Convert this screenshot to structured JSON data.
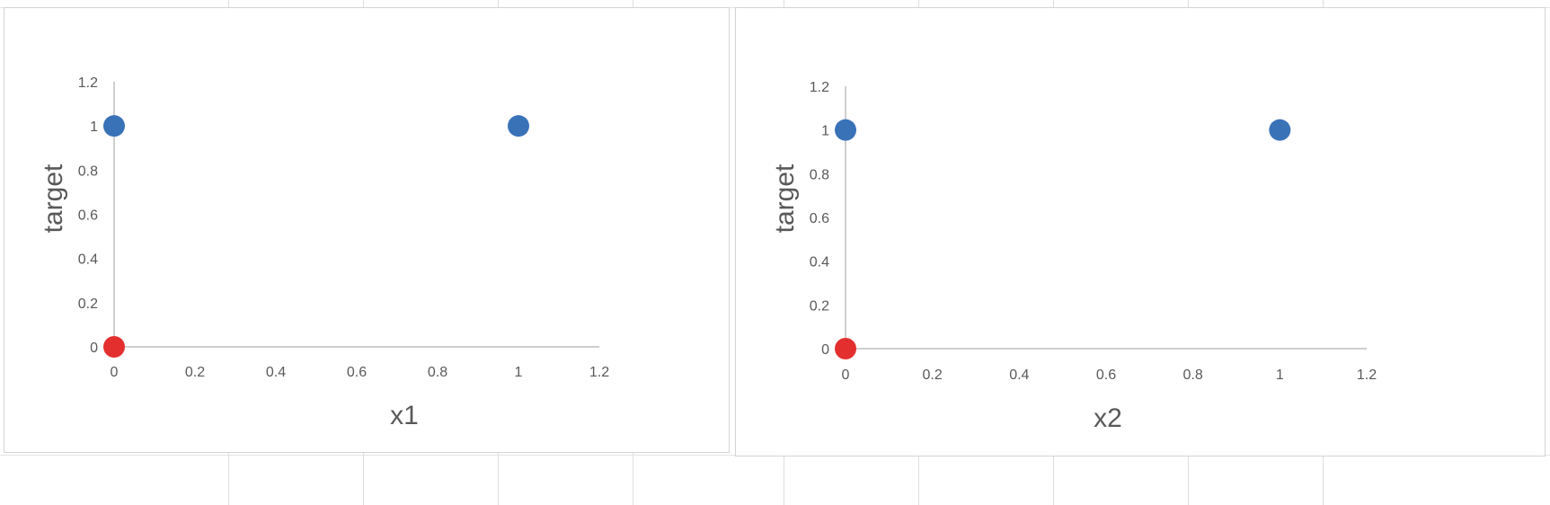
{
  "sheet": {
    "gridline_color": "#dedede"
  },
  "chart_data": [
    {
      "type": "scatter",
      "title": "",
      "xlabel": "x1",
      "ylabel": "target",
      "xlim": [
        0,
        1.2
      ],
      "ylim": [
        0,
        1.2
      ],
      "xticks": [
        "0",
        "0.2",
        "0.4",
        "0.6",
        "0.8",
        "1",
        "1.2"
      ],
      "yticks": [
        "0",
        "0.2",
        "0.4",
        "0.6",
        "0.8",
        "1",
        "1.2"
      ],
      "grid": false,
      "legend": "none",
      "points": [
        {
          "x": 0,
          "y": 1,
          "color": "#3a72b8"
        },
        {
          "x": 1,
          "y": 1,
          "color": "#3a72b8"
        },
        {
          "x": 0,
          "y": 0,
          "color": "#e3302f"
        }
      ]
    },
    {
      "type": "scatter",
      "title": "",
      "xlabel": "x2",
      "ylabel": "target",
      "xlim": [
        0,
        1.2
      ],
      "ylim": [
        0,
        1.2
      ],
      "xticks": [
        "0",
        "0.2",
        "0.4",
        "0.6",
        "0.8",
        "1",
        "1.2"
      ],
      "yticks": [
        "0",
        "0.2",
        "0.4",
        "0.6",
        "0.8",
        "1",
        "1.2"
      ],
      "grid": false,
      "legend": "none",
      "points": [
        {
          "x": 0,
          "y": 1,
          "color": "#3a72b8"
        },
        {
          "x": 1,
          "y": 1,
          "color": "#3a72b8"
        },
        {
          "x": 0,
          "y": 0,
          "color": "#e3302f"
        }
      ]
    }
  ]
}
